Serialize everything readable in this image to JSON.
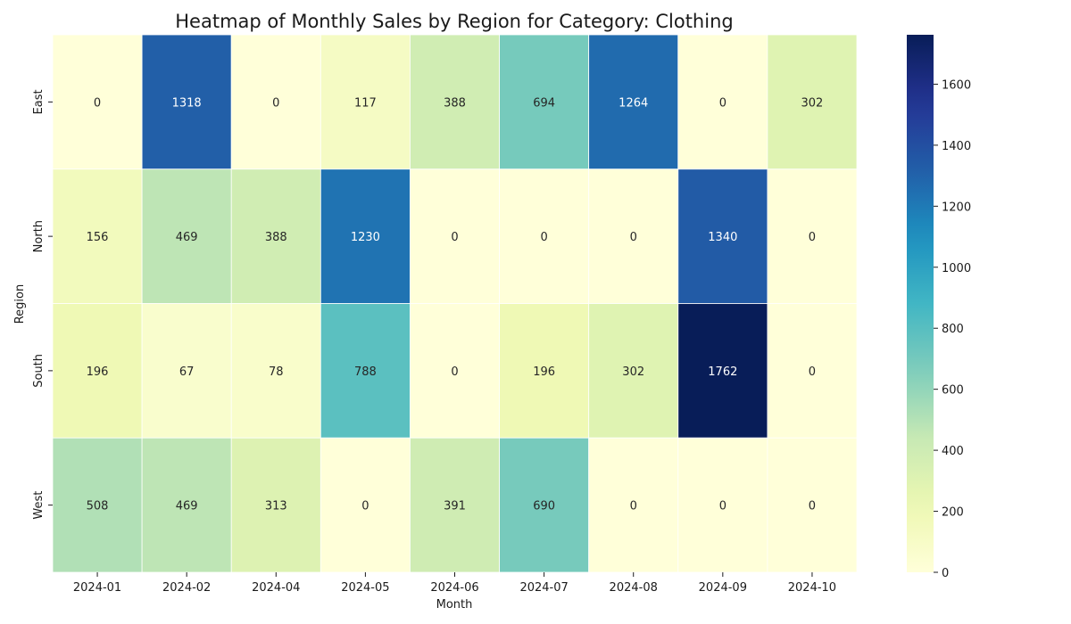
{
  "chart_data": {
    "type": "heatmap",
    "title": "Heatmap of Monthly Sales by Region for Category: Clothing",
    "xlabel": "Month",
    "ylabel": "Region",
    "x_categories": [
      "2024-01",
      "2024-02",
      "2024-04",
      "2024-05",
      "2024-06",
      "2024-07",
      "2024-08",
      "2024-09",
      "2024-10"
    ],
    "y_categories": [
      "East",
      "North",
      "South",
      "West"
    ],
    "values": [
      [
        0,
        1318,
        0,
        117,
        388,
        694,
        1264,
        0,
        302
      ],
      [
        156,
        469,
        388,
        1230,
        0,
        0,
        0,
        1340,
        0
      ],
      [
        196,
        67,
        78,
        788,
        0,
        196,
        302,
        1762,
        0
      ],
      [
        508,
        469,
        313,
        0,
        391,
        690,
        0,
        0,
        0
      ]
    ],
    "colormap": "YlGnBu",
    "colorbar": {
      "range": [
        0,
        1762
      ],
      "ticks": [
        0,
        200,
        400,
        600,
        800,
        1000,
        1200,
        1400,
        1600
      ]
    },
    "annotations": true,
    "grid": false
  }
}
